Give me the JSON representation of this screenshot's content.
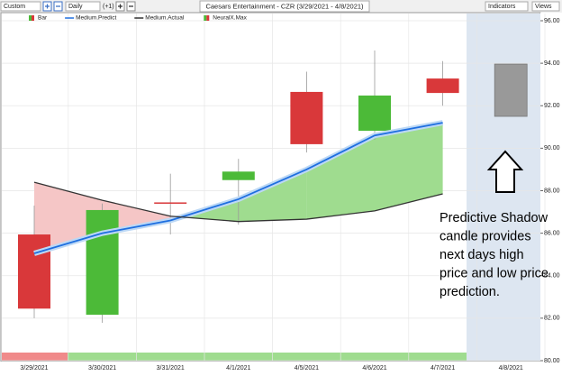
{
  "toolbar": {
    "period": "Custom",
    "interval": "Daily",
    "offset": "(+1)",
    "title": "Caesars Entertainment - CZR (3/29/2021 - 4/8/2021)",
    "indicators": "Indicators",
    "views": "Views"
  },
  "chart_data": {
    "type": "candlestick",
    "categories": [
      "3/29/2021",
      "3/30/2021",
      "3/31/2021",
      "4/1/2021",
      "4/5/2021",
      "4/6/2021",
      "4/7/2021",
      "4/8/2021"
    ],
    "series": [
      {
        "name": "Bar",
        "type": "candlestick",
        "up_color": "#4cba38",
        "down_color": "#d9383a",
        "open": [
          85.94,
          82.16,
          87.45,
          88.5,
          92.65,
          90.82,
          93.28,
          null
        ],
        "high": [
          87.3,
          87.4,
          88.8,
          89.5,
          93.6,
          94.6,
          94.1,
          null
        ],
        "low": [
          82.0,
          81.78,
          85.94,
          86.4,
          89.8,
          90.4,
          92.0,
          null
        ],
        "close": [
          82.45,
          87.09,
          87.4,
          88.9,
          90.19,
          92.48,
          92.6,
          null
        ]
      },
      {
        "name": "Medium.Predict",
        "type": "line",
        "color": "#1f6fe0",
        "values": [
          85.05,
          86.0,
          86.6,
          87.6,
          89.0,
          90.6,
          91.2,
          null
        ]
      },
      {
        "name": "Medium.Actual",
        "type": "line",
        "color": "#333333",
        "values": [
          88.4,
          87.55,
          86.8,
          86.55,
          86.66,
          87.05,
          87.85,
          null
        ]
      },
      {
        "name": "NeuralX.Max",
        "type": "shadow",
        "color": "#999999",
        "high": [
          null,
          null,
          null,
          null,
          null,
          null,
          null,
          93.96
        ],
        "low": [
          null,
          null,
          null,
          null,
          null,
          null,
          null,
          91.5
        ]
      }
    ],
    "fill_colors": {
      "predict_above": "#9fdc8f",
      "actual_above": "#f5c6c6"
    },
    "ylim": [
      80,
      96
    ],
    "yticks": [
      {
        "value": 80,
        "label": "80.00"
      },
      {
        "value": 82,
        "label": "82.00"
      },
      {
        "value": 84,
        "label": "84.00"
      },
      {
        "value": 86,
        "label": "86.00"
      },
      {
        "value": 88,
        "label": "88.00"
      },
      {
        "value": 90,
        "label": "90.00"
      },
      {
        "value": 92,
        "label": "92.00"
      },
      {
        "value": 94,
        "label": "94.00"
      },
      {
        "value": 96,
        "label": "96.00"
      }
    ],
    "grid": true,
    "annotation": [
      "Predictive Shadow",
      "candle provides",
      "next days high",
      "price and low price",
      "prediction."
    ]
  }
}
